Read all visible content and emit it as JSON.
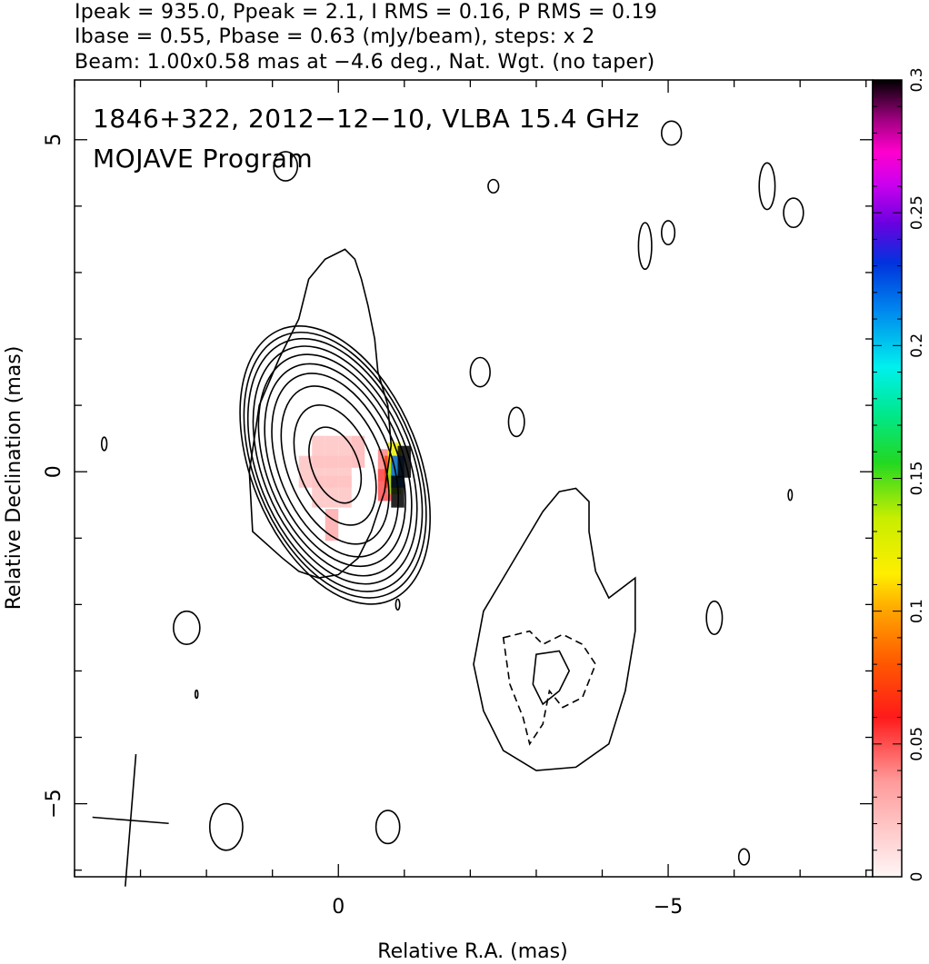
{
  "header": {
    "line1": "Ipeak = 935.0, Ppeak = 2.1, I RMS = 0.16, P RMS = 0.19",
    "line2": "Ibase = 0.55, Pbase = 0.63 (mJy/beam), steps: x 2",
    "line3": "Beam: 1.00x0.58 mas at −4.6 deg., Nat. Wgt. (no taper)"
  },
  "chart_data": {
    "type": "heatmap",
    "title": "1846+322, 2012−12−10, VLBA 15.4 GHz",
    "subtitle": "MOJAVE Program",
    "xlabel": "Relative R.A. (mas)",
    "ylabel": "Relative Declination (mas)",
    "xlim": [
      4.0,
      -8.1
    ],
    "ylim": [
      -6.1,
      5.9
    ],
    "x_ticks": [
      {
        "value": 0,
        "label": "0"
      },
      {
        "value": -5,
        "label": "−5"
      }
    ],
    "y_ticks": [
      {
        "value": 5,
        "label": "5"
      },
      {
        "value": 0,
        "label": "0"
      },
      {
        "value": -5,
        "label": "−5"
      }
    ],
    "colorbar": {
      "range": [
        0,
        0.3
      ],
      "ticks": [
        {
          "value": 0,
          "label": "0"
        },
        {
          "value": 0.05,
          "label": "0.05"
        },
        {
          "value": 0.1,
          "label": "0.1"
        },
        {
          "value": 0.15,
          "label": "0.15"
        },
        {
          "value": 0.2,
          "label": "0.2"
        },
        {
          "value": 0.25,
          "label": "0.25"
        },
        {
          "value": 0.3,
          "label": "0.3"
        }
      ]
    },
    "core_contours": {
      "center": [
        0.05,
        0.1
      ],
      "semi_axes": [
        [
          0.35,
          0.6
        ],
        [
          0.55,
          0.95
        ],
        [
          0.72,
          1.25
        ],
        [
          0.85,
          1.45
        ],
        [
          0.95,
          1.6
        ],
        [
          1.03,
          1.75
        ],
        [
          1.1,
          1.88
        ],
        [
          1.17,
          2.0
        ],
        [
          1.22,
          2.1
        ],
        [
          1.27,
          2.2
        ]
      ],
      "tilt_deg": -22
    },
    "beam": {
      "center": [
        3.15,
        -5.25
      ],
      "major_mas": 1.0,
      "minor_mas": 0.58,
      "pa_deg": -4.6
    },
    "polarization_pixels": [
      {
        "ra": 0.5,
        "dec": 0.0,
        "value": 0.02
      },
      {
        "ra": 0.3,
        "dec": 0.0,
        "value": 0.02
      },
      {
        "ra": 0.1,
        "dec": 0.0,
        "value": 0.02
      },
      {
        "ra": -0.1,
        "dec": 0.0,
        "value": 0.02
      },
      {
        "ra": 0.3,
        "dec": 0.3,
        "value": 0.02
      },
      {
        "ra": 0.1,
        "dec": 0.3,
        "value": 0.02
      },
      {
        "ra": -0.1,
        "dec": 0.3,
        "value": 0.02
      },
      {
        "ra": -0.3,
        "dec": 0.3,
        "value": 0.025
      },
      {
        "ra": 0.3,
        "dec": -0.3,
        "value": 0.02
      },
      {
        "ra": 0.1,
        "dec": -0.3,
        "value": 0.02
      },
      {
        "ra": -0.1,
        "dec": -0.3,
        "value": 0.02
      },
      {
        "ra": 0.1,
        "dec": -0.8,
        "value": 0.03
      },
      {
        "ra": -0.7,
        "dec": 0.1,
        "value": 0.04
      },
      {
        "ra": -0.7,
        "dec": -0.2,
        "value": 0.05
      },
      {
        "ra": -0.8,
        "dec": 0.0,
        "value": 0.07
      },
      {
        "ra": -0.85,
        "dec": 0.2,
        "value": 0.12
      },
      {
        "ra": -0.85,
        "dec": -0.1,
        "value": 0.14
      },
      {
        "ra": -0.9,
        "dec": 0.0,
        "value": 0.22
      },
      {
        "ra": -0.9,
        "dec": -0.3,
        "value": 0.3
      },
      {
        "ra": -1.0,
        "dec": 0.15,
        "value": 0.3
      }
    ]
  }
}
